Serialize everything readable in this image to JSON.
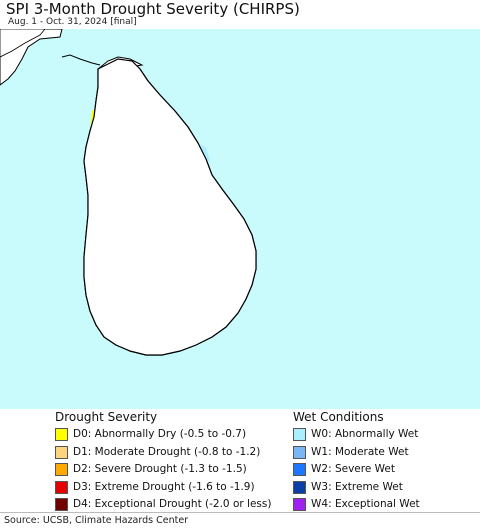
{
  "header": {
    "title": "SPI 3-Month Drought Severity (CHIRPS)",
    "subtitle": "Aug. 1 - Oct. 31, 2024 [final]"
  },
  "legend": {
    "drought": {
      "title": "Drought Severity",
      "items": [
        {
          "label": "D0: Abnormally Dry (-0.5 to -0.7)",
          "color": "#ffff00"
        },
        {
          "label": "D1: Moderate Drought (-0.8 to -1.2)",
          "color": "#fcd37f"
        },
        {
          "label": "D2: Severe Drought (-1.3 to -1.5)",
          "color": "#ffaa00"
        },
        {
          "label": "D3: Extreme Drought (-1.6 to -1.9)",
          "color": "#e60000"
        },
        {
          "label": "D4: Exceptional Drought (-2.0 or less)",
          "color": "#730000"
        }
      ]
    },
    "wet": {
      "title": "Wet Conditions",
      "items": [
        {
          "label": "W0: Abnormally Wet",
          "color": "#aaeeff"
        },
        {
          "label": "W1: Moderate Wet",
          "color": "#7ab6f5"
        },
        {
          "label": "W2: Severe Wet",
          "color": "#1e78ff"
        },
        {
          "label": "W3: Extreme Wet",
          "color": "#0a3fa8"
        },
        {
          "label": "W4: Exceptional Wet",
          "color": "#a020f0"
        }
      ]
    }
  },
  "map": {
    "ocean_color": "#c9fbfd",
    "land_color": "#ffffff",
    "boundary_color": "#000000"
  },
  "source": "Source: UCSB, Climate Hazards Center"
}
